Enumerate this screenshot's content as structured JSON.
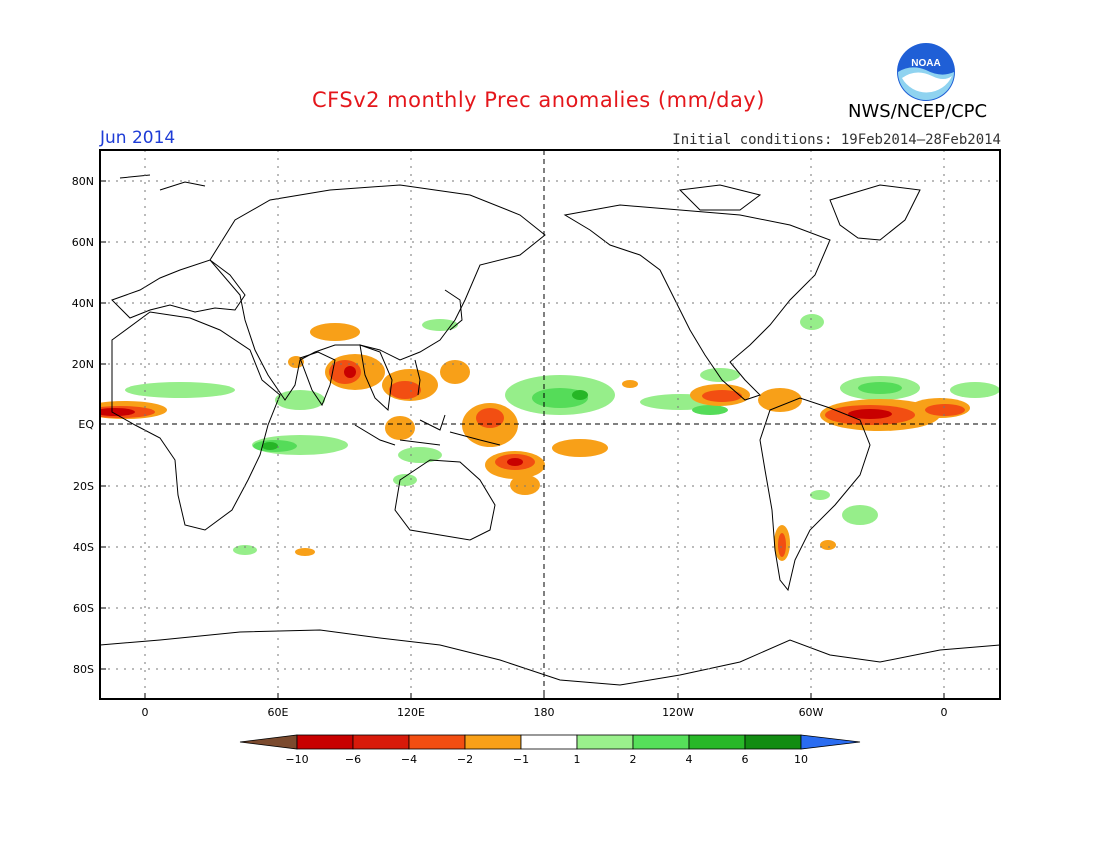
{
  "header": {
    "title": "CFSv2 monthly Prec anomalies (mm/day)",
    "agency": "NWS/NCEP/CPC",
    "logo_text": "NOAA",
    "valid_month": "Jun 2014",
    "initial_conditions": "Initial conditions: 19Feb2014–28Feb2014"
  },
  "axes": {
    "lat_labels": [
      "80N",
      "60N",
      "40N",
      "20N",
      "EQ",
      "20S",
      "40S",
      "60S",
      "80S"
    ],
    "lon_labels": [
      "0",
      "60E",
      "120E",
      "180",
      "120W",
      "60W",
      "0"
    ]
  },
  "colorbar": {
    "labels": [
      "−10",
      "−6",
      "−4",
      "−2",
      "−1",
      "1",
      "2",
      "4",
      "6",
      "10"
    ],
    "colors": [
      "#7b4a2e",
      "#c80000",
      "#d81a0a",
      "#f24e12",
      "#f8a018",
      "#ffffff",
      "#9af08c",
      "#56e05a",
      "#28b828",
      "#128c12",
      "#2a6cf0"
    ]
  },
  "colors": {
    "title": "#e4161b",
    "month": "#1e3cd6",
    "frame": "#000000"
  }
}
